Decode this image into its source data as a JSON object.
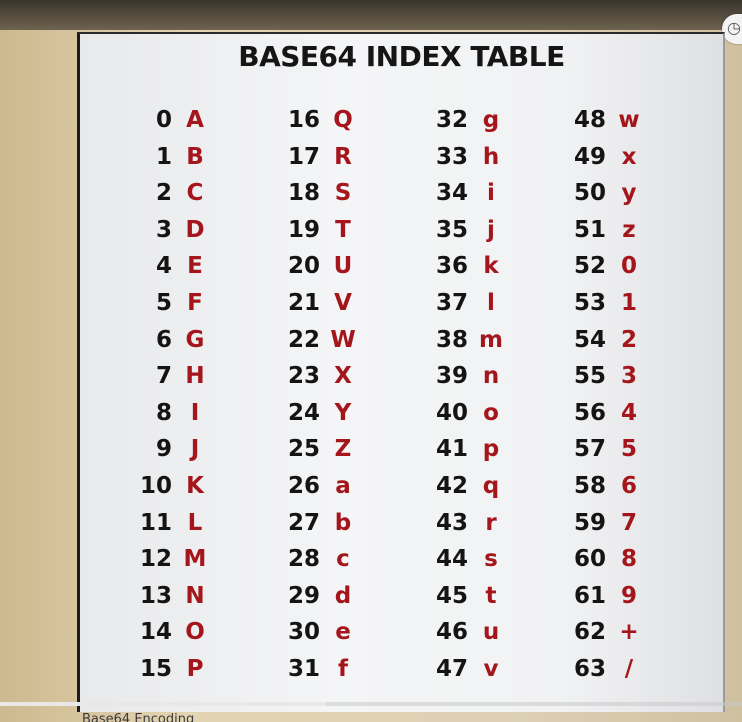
{
  "title": "BASE64 INDEX TABLE",
  "columns": [
    {
      "rows": [
        {
          "index": "0",
          "char": "A"
        },
        {
          "index": "1",
          "char": "B"
        },
        {
          "index": "2",
          "char": "C"
        },
        {
          "index": "3",
          "char": "D"
        },
        {
          "index": "4",
          "char": "E"
        },
        {
          "index": "5",
          "char": "F"
        },
        {
          "index": "6",
          "char": "G"
        },
        {
          "index": "7",
          "char": "H"
        },
        {
          "index": "8",
          "char": "I"
        },
        {
          "index": "9",
          "char": "J"
        },
        {
          "index": "10",
          "char": "K"
        },
        {
          "index": "11",
          "char": "L"
        },
        {
          "index": "12",
          "char": "M"
        },
        {
          "index": "13",
          "char": "N"
        },
        {
          "index": "14",
          "char": "O"
        },
        {
          "index": "15",
          "char": "P"
        }
      ]
    },
    {
      "rows": [
        {
          "index": "16",
          "char": "Q"
        },
        {
          "index": "17",
          "char": "R"
        },
        {
          "index": "18",
          "char": "S"
        },
        {
          "index": "19",
          "char": "T"
        },
        {
          "index": "20",
          "char": "U"
        },
        {
          "index": "21",
          "char": "V"
        },
        {
          "index": "22",
          "char": "W"
        },
        {
          "index": "23",
          "char": "X"
        },
        {
          "index": "24",
          "char": "Y"
        },
        {
          "index": "25",
          "char": "Z"
        },
        {
          "index": "26",
          "char": "a"
        },
        {
          "index": "27",
          "char": "b"
        },
        {
          "index": "28",
          "char": "c"
        },
        {
          "index": "29",
          "char": "d"
        },
        {
          "index": "30",
          "char": "e"
        },
        {
          "index": "31",
          "char": "f"
        }
      ]
    },
    {
      "rows": [
        {
          "index": "32",
          "char": "g"
        },
        {
          "index": "33",
          "char": "h"
        },
        {
          "index": "34",
          "char": "i"
        },
        {
          "index": "35",
          "char": "j"
        },
        {
          "index": "36",
          "char": "k"
        },
        {
          "index": "37",
          "char": "l"
        },
        {
          "index": "38",
          "char": "m"
        },
        {
          "index": "39",
          "char": "n"
        },
        {
          "index": "40",
          "char": "o"
        },
        {
          "index": "41",
          "char": "p"
        },
        {
          "index": "42",
          "char": "q"
        },
        {
          "index": "43",
          "char": "r"
        },
        {
          "index": "44",
          "char": "s"
        },
        {
          "index": "45",
          "char": "t"
        },
        {
          "index": "46",
          "char": "u"
        },
        {
          "index": "47",
          "char": "v"
        }
      ]
    },
    {
      "rows": [
        {
          "index": "48",
          "char": "w"
        },
        {
          "index": "49",
          "char": "x"
        },
        {
          "index": "50",
          "char": "y"
        },
        {
          "index": "51",
          "char": "z"
        },
        {
          "index": "52",
          "char": "0"
        },
        {
          "index": "53",
          "char": "1"
        },
        {
          "index": "54",
          "char": "2"
        },
        {
          "index": "55",
          "char": "3"
        },
        {
          "index": "56",
          "char": "4"
        },
        {
          "index": "57",
          "char": "5"
        },
        {
          "index": "58",
          "char": "6"
        },
        {
          "index": "59",
          "char": "7"
        },
        {
          "index": "60",
          "char": "8"
        },
        {
          "index": "61",
          "char": "9"
        },
        {
          "index": "62",
          "char": "+"
        },
        {
          "index": "63",
          "char": "/"
        }
      ]
    }
  ],
  "player": {
    "progress_fraction": 0.44,
    "caption_text": "Base64 Encoding"
  },
  "colors": {
    "index_text": "#141414",
    "char_text": "#a4161c"
  }
}
